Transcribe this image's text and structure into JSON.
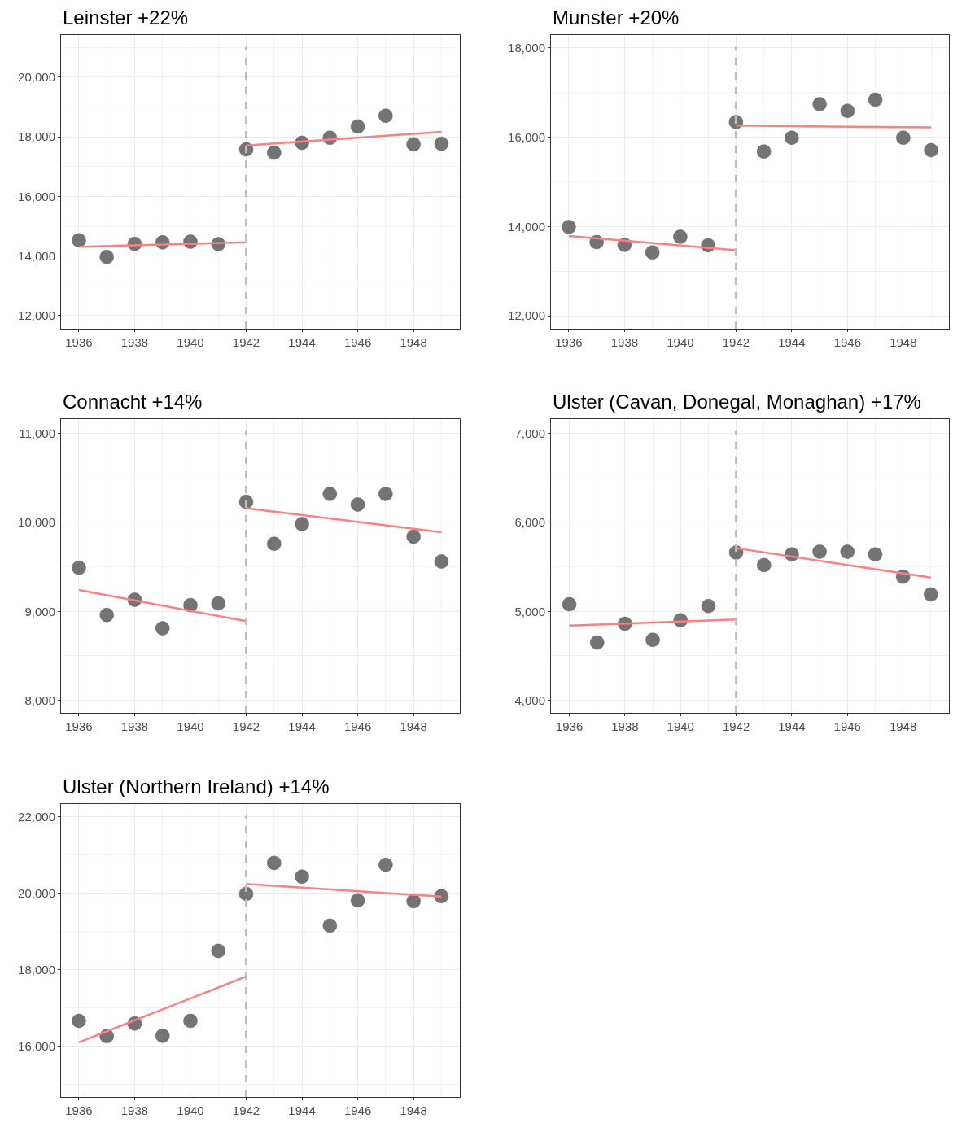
{
  "chart_data": [
    {
      "type": "scatter",
      "title": "Leinster +22%",
      "xlim": [
        1935.36,
        1949.66
      ],
      "xticks": [
        1936,
        1938,
        1940,
        1942,
        1944,
        1946,
        1948
      ],
      "ylim": [
        11560,
        21420
      ],
      "yticks": [
        {
          "value": 12000,
          "label": "12,000"
        },
        {
          "value": 14000,
          "label": "14,000"
        },
        {
          "value": 16000,
          "label": "16,000"
        },
        {
          "value": 18000,
          "label": "18,000"
        },
        {
          "value": 20000,
          "label": "20,000"
        }
      ],
      "grid": true,
      "series": [
        {
          "marker": "circle",
          "color": "#666666",
          "x": [
            1936,
            1937,
            1938,
            1939,
            1940,
            1941,
            1942,
            1943,
            1944,
            1945,
            1946,
            1947,
            1948,
            1949
          ],
          "values": [
            14530,
            13970,
            14410,
            14460,
            14480,
            14400,
            17580,
            17470,
            17800,
            17970,
            18350,
            18710,
            17750,
            17770
          ]
        },
        {
          "type": "line",
          "color": "#ff7f7f",
          "x": [
            1936,
            1942
          ],
          "values": [
            14310,
            14460
          ]
        },
        {
          "type": "line",
          "color": "#ff7f7f",
          "x": [
            1942,
            1949
          ],
          "values": [
            17710,
            18170
          ]
        }
      ],
      "ref_lines": [
        {
          "axis": "x",
          "value": 1942,
          "color": "#bebebe",
          "line_style": "dashed"
        }
      ]
    },
    {
      "type": "scatter",
      "title": "Munster +20%",
      "xlim": [
        1935.36,
        1949.64
      ],
      "xticks": [
        1936,
        1938,
        1940,
        1942,
        1944,
        1946,
        1948
      ],
      "ylim": [
        11710,
        18290
      ],
      "yticks": [
        {
          "value": 12000,
          "label": "12,000"
        },
        {
          "value": 14000,
          "label": "14,000"
        },
        {
          "value": 16000,
          "label": "16,000"
        },
        {
          "value": 18000,
          "label": "18,000"
        }
      ],
      "grid": true,
      "series": [
        {
          "marker": "circle",
          "color": "#666666",
          "x": [
            1936,
            1937,
            1938,
            1939,
            1940,
            1941,
            1942,
            1943,
            1944,
            1945,
            1946,
            1947,
            1948,
            1949
          ],
          "values": [
            13990,
            13650,
            13590,
            13420,
            13770,
            13580,
            16340,
            15680,
            15990,
            16740,
            16590,
            16840,
            15990,
            15710
          ]
        },
        {
          "type": "line",
          "color": "#ff7f7f",
          "x": [
            1936,
            1942
          ],
          "values": [
            13790,
            13470
          ]
        },
        {
          "type": "line",
          "color": "#ff7f7f",
          "x": [
            1942,
            1949
          ],
          "values": [
            16260,
            16220
          ]
        }
      ],
      "ref_lines": [
        {
          "axis": "x",
          "value": 1942,
          "color": "#bebebe",
          "line_style": "dashed"
        }
      ]
    },
    {
      "type": "scatter",
      "title": "Connacht +14%",
      "xlim": [
        1935.36,
        1949.66
      ],
      "xticks": [
        1936,
        1938,
        1940,
        1942,
        1944,
        1946,
        1948
      ],
      "ylim": [
        7860,
        11160
      ],
      "yticks": [
        {
          "value": 8000,
          "label": "8,000"
        },
        {
          "value": 9000,
          "label": "9,000"
        },
        {
          "value": 10000,
          "label": "10,000"
        },
        {
          "value": 11000,
          "label": "11,000"
        }
      ],
      "grid": true,
      "series": [
        {
          "marker": "circle",
          "color": "#666666",
          "x": [
            1936,
            1937,
            1938,
            1939,
            1940,
            1941,
            1942,
            1943,
            1944,
            1945,
            1946,
            1947,
            1948,
            1949
          ],
          "values": [
            9490,
            8960,
            9130,
            8810,
            9070,
            9090,
            10230,
            9760,
            9980,
            10320,
            10200,
            10320,
            9840,
            9560
          ]
        },
        {
          "type": "line",
          "color": "#ff7f7f",
          "x": [
            1936,
            1942
          ],
          "values": [
            9240,
            8890
          ]
        },
        {
          "type": "line",
          "color": "#ff7f7f",
          "x": [
            1942,
            1949
          ],
          "values": [
            10160,
            9890
          ]
        }
      ],
      "ref_lines": [
        {
          "axis": "x",
          "value": 1942,
          "color": "#bebebe",
          "line_style": "dashed"
        }
      ]
    },
    {
      "type": "scatter",
      "title": "Ulster (Cavan, Donegal, Monaghan) +17%",
      "xlim": [
        1935.34,
        1949.65
      ],
      "xticks": [
        1936,
        1938,
        1940,
        1942,
        1944,
        1946,
        1948
      ],
      "ylim": [
        3860,
        7160
      ],
      "yticks": [
        {
          "value": 4000,
          "label": "4,000"
        },
        {
          "value": 5000,
          "label": "5,000"
        },
        {
          "value": 6000,
          "label": "6,000"
        },
        {
          "value": 7000,
          "label": "7,000"
        }
      ],
      "grid": true,
      "series": [
        {
          "marker": "circle",
          "color": "#666666",
          "x": [
            1936,
            1937,
            1938,
            1939,
            1940,
            1941,
            1942,
            1943,
            1944,
            1945,
            1946,
            1947,
            1948,
            1949
          ],
          "values": [
            5080,
            4650,
            4860,
            4680,
            4900,
            5060,
            5660,
            5520,
            5640,
            5670,
            5670,
            5640,
            5390,
            5190
          ]
        },
        {
          "type": "line",
          "color": "#ff7f7f",
          "x": [
            1936,
            1942
          ],
          "values": [
            4840,
            4910
          ]
        },
        {
          "type": "line",
          "color": "#ff7f7f",
          "x": [
            1942,
            1949
          ],
          "values": [
            5710,
            5380
          ]
        }
      ],
      "ref_lines": [
        {
          "axis": "x",
          "value": 1942,
          "color": "#bebebe",
          "line_style": "dashed"
        }
      ]
    },
    {
      "type": "scatter",
      "title": "Ulster (Northern Ireland) +14%",
      "xlim": [
        1935.36,
        1949.66
      ],
      "xticks": [
        1936,
        1938,
        1940,
        1942,
        1944,
        1946,
        1948
      ],
      "ylim": [
        14680,
        22340
      ],
      "yticks": [
        {
          "value": 16000,
          "label": "16,000"
        },
        {
          "value": 18000,
          "label": "18,000"
        },
        {
          "value": 20000,
          "label": "20,000"
        },
        {
          "value": 22000,
          "label": "22,000"
        }
      ],
      "grid": true,
      "series": [
        {
          "marker": "circle",
          "color": "#666666",
          "x": [
            1936,
            1937,
            1938,
            1939,
            1940,
            1941,
            1942,
            1943,
            1944,
            1945,
            1946,
            1947,
            1948,
            1949
          ],
          "values": [
            16670,
            16270,
            16600,
            16280,
            16670,
            18500,
            19990,
            20800,
            20440,
            19160,
            19820,
            20750,
            19800,
            19930
          ]
        },
        {
          "type": "line",
          "color": "#ff7f7f",
          "x": [
            1936,
            1942
          ],
          "values": [
            16110,
            17830
          ]
        },
        {
          "type": "line",
          "color": "#ff7f7f",
          "x": [
            1942,
            1949
          ],
          "values": [
            20250,
            19920
          ]
        }
      ],
      "ref_lines": [
        {
          "axis": "x",
          "value": 1942,
          "color": "#bebebe",
          "line_style": "dashed"
        }
      ]
    }
  ]
}
